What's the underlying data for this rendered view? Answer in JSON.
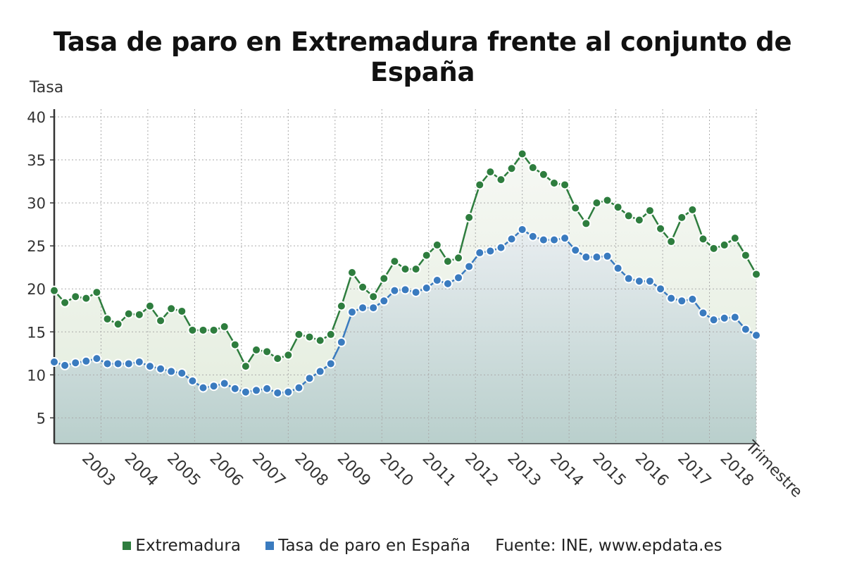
{
  "chart_data": {
    "type": "area",
    "title": "Tasa de paro en Extremadura frente al conjunto de España",
    "ylabel": "Tasa",
    "xlabel": "Trimestre",
    "ylim": [
      2,
      40
    ],
    "yticks": [
      5,
      10,
      15,
      20,
      25,
      30,
      35,
      40
    ],
    "x_start": "2002 T1",
    "x_end": "2018 T3",
    "year_labels": [
      "2003",
      "2004",
      "2005",
      "2006",
      "2007",
      "2008",
      "2009",
      "2010",
      "2011",
      "2012",
      "2013",
      "2014",
      "2015",
      "2016",
      "2017",
      "2018"
    ],
    "grid": true,
    "legend_placement": "bottom",
    "series": [
      {
        "name": "Extremadura",
        "color": "#2e7d3e",
        "values": [
          19.8,
          18.4,
          19.1,
          18.9,
          19.6,
          16.5,
          15.9,
          17.1,
          17.0,
          18.0,
          16.3,
          17.7,
          17.4,
          15.2,
          15.2,
          15.2,
          15.6,
          13.5,
          11.0,
          12.9,
          12.7,
          11.9,
          12.3,
          14.7,
          14.4,
          14.0,
          14.7,
          18.0,
          21.9,
          20.2,
          19.1,
          21.2,
          23.2,
          22.3,
          22.3,
          23.9,
          25.1,
          23.2,
          23.6,
          28.3,
          32.1,
          33.6,
          32.7,
          34.0,
          35.7,
          34.1,
          33.3,
          32.3,
          32.1,
          29.4,
          27.6,
          30.0,
          30.3,
          29.5,
          28.5,
          28.0,
          29.1,
          27.0,
          25.5,
          28.3,
          29.2,
          25.8,
          24.7,
          25.1,
          25.9,
          23.9,
          21.7
        ]
      },
      {
        "name": "Tasa de paro en España",
        "color": "#3a7bbf",
        "values": [
          11.5,
          11.1,
          11.4,
          11.6,
          11.9,
          11.3,
          11.3,
          11.3,
          11.5,
          11.0,
          10.7,
          10.4,
          10.2,
          9.3,
          8.5,
          8.7,
          9.0,
          8.4,
          8.0,
          8.2,
          8.4,
          7.9,
          8.0,
          8.5,
          9.6,
          10.4,
          11.3,
          13.8,
          17.3,
          17.8,
          17.8,
          18.6,
          19.8,
          19.9,
          19.6,
          20.1,
          21.0,
          20.6,
          21.3,
          22.6,
          24.2,
          24.4,
          24.8,
          25.8,
          26.9,
          26.1,
          25.7,
          25.7,
          25.9,
          24.5,
          23.7,
          23.7,
          23.8,
          22.4,
          21.2,
          20.9,
          20.9,
          20.0,
          18.9,
          18.6,
          18.8,
          17.2,
          16.4,
          16.6,
          16.7,
          15.3,
          14.6
        ]
      }
    ],
    "source": "Fuente: INE, www.epdata.es"
  }
}
